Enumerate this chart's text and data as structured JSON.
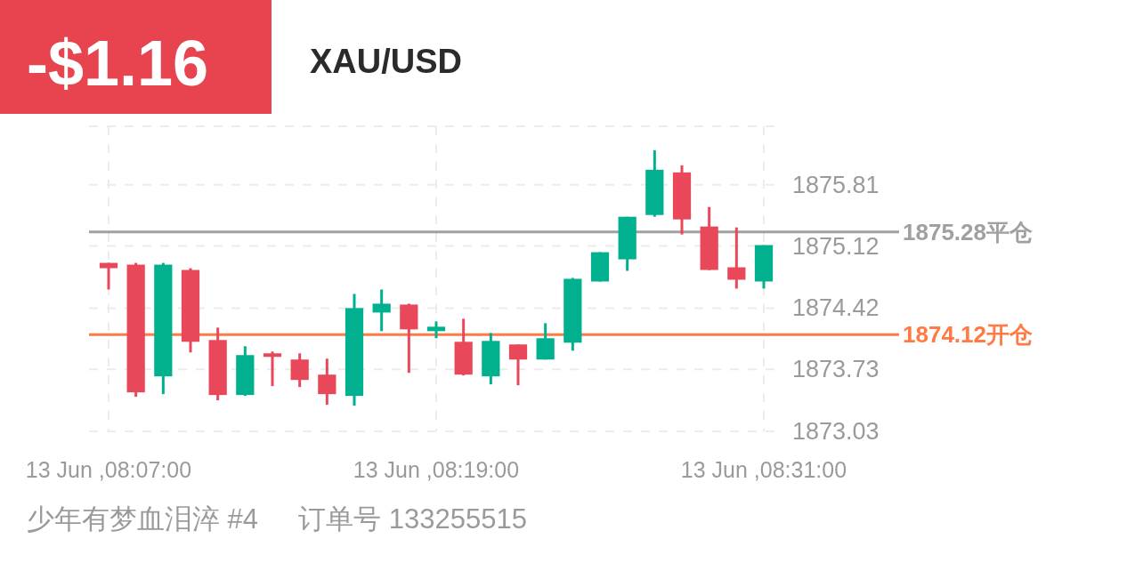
{
  "chart_data": {
    "type": "candlestick",
    "title": "XAU/USD",
    "subtitle": "-$1.16",
    "categories": [
      "13 Jun ,08:07:00",
      null,
      null,
      null,
      null,
      null,
      null,
      null,
      null,
      null,
      null,
      null,
      "13 Jun ,08:19:00",
      null,
      null,
      null,
      null,
      null,
      null,
      null,
      null,
      null,
      null,
      null,
      "13 Jun ,08:31:00"
    ],
    "ohlc": [
      [
        1874.93,
        1874.93,
        1874.63,
        1874.87
      ],
      [
        1874.91,
        1874.93,
        1873.42,
        1873.47
      ],
      [
        1873.65,
        1874.93,
        1873.45,
        1874.91
      ],
      [
        1874.85,
        1874.87,
        1873.92,
        1874.04
      ],
      [
        1874.06,
        1874.2,
        1873.38,
        1873.44
      ],
      [
        1873.44,
        1873.99,
        1873.43,
        1873.89
      ],
      [
        1873.91,
        1873.93,
        1873.54,
        1873.87
      ],
      [
        1873.84,
        1873.91,
        1873.53,
        1873.61
      ],
      [
        1873.67,
        1873.85,
        1873.33,
        1873.45
      ],
      [
        1873.43,
        1874.58,
        1873.32,
        1874.42
      ],
      [
        1874.37,
        1874.63,
        1874.16,
        1874.47
      ],
      [
        1874.46,
        1874.47,
        1873.69,
        1874.18
      ],
      [
        1874.16,
        1874.27,
        1874.08,
        1874.21
      ],
      [
        1874.04,
        1874.3,
        1873.66,
        1873.67
      ],
      [
        1873.65,
        1874.14,
        1873.56,
        1874.05
      ],
      [
        1874.01,
        1874.01,
        1873.55,
        1873.84
      ],
      [
        1873.84,
        1874.25,
        1873.84,
        1874.08
      ],
      [
        1874.03,
        1874.76,
        1873.94,
        1874.75
      ],
      [
        1874.72,
        1875.05,
        1874.72,
        1875.05
      ],
      [
        1874.97,
        1875.45,
        1874.84,
        1875.45
      ],
      [
        1875.47,
        1876.2,
        1875.45,
        1875.98
      ],
      [
        1875.95,
        1876.03,
        1875.25,
        1875.42
      ],
      [
        1875.34,
        1875.56,
        1874.85,
        1874.85
      ],
      [
        1874.88,
        1875.33,
        1874.64,
        1874.74
      ],
      [
        1874.72,
        1875.13,
        1874.64,
        1875.13
      ]
    ],
    "colors": [
      "#e9475a",
      "#e9475a",
      "#00b08f",
      "#e9475a",
      "#e9475a",
      "#00b08f",
      "#e9475a",
      "#e9475a",
      "#e9475a",
      "#00b08f",
      "#00b08f",
      "#e9475a",
      "#00b08f",
      "#e9475a",
      "#00b08f",
      "#e9475a",
      "#00b08f",
      "#00b08f",
      "#00b08f",
      "#00b08f",
      "#00b08f",
      "#e9475a",
      "#e9475a",
      "#e9475a",
      "#00b08f"
    ],
    "ylim": [
      1873.03,
      1876.47
    ],
    "yticks": [
      1873.03,
      1873.73,
      1874.42,
      1875.12,
      1875.81
    ],
    "grid": true,
    "ref_lines": [
      {
        "axis": "y",
        "value": 1875.28,
        "label": "1875.28平仓",
        "color": "#a0a0a0"
      },
      {
        "axis": "y",
        "value": 1874.12,
        "label": "1874.12开仓",
        "color": "#ff7a45"
      }
    ],
    "annotations": [
      "少年有梦血泪淬 #4",
      "订单号 133255515"
    ]
  }
}
